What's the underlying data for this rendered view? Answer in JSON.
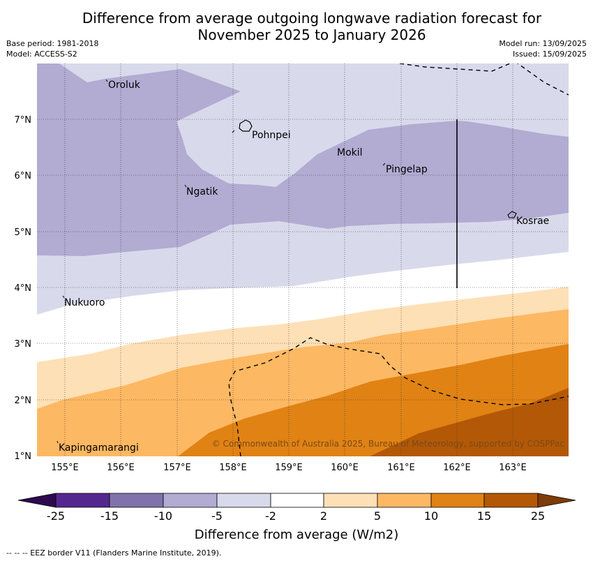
{
  "title_line1": "Difference from average outgoing longwave radiation forecast for",
  "title_line2": "November 2025 to January 2026",
  "base_period": "Base period: 1981-2018",
  "model": "Model: ACCESS-S2",
  "model_run": "Model run: 13/09/2025",
  "issued": "Issued: 15/09/2025",
  "places": {
    "oroluk": "Oroluk",
    "pohnpei": "Pohnpei",
    "mokil": "Mokil",
    "pingelap": "Pingelap",
    "ngatik": "Ngatik",
    "kosrae": "Kosrae",
    "nukuoro": "Nukuoro",
    "kapingamarangi": "Kapingamarangi"
  },
  "lat_ticks": [
    "7°N",
    "6°N",
    "5°N",
    "4°N",
    "3°N",
    "2°N",
    "1°N"
  ],
  "lon_ticks": [
    "155°E",
    "156°E",
    "157°E",
    "158°E",
    "159°E",
    "160°E",
    "161°E",
    "162°E",
    "163°E"
  ],
  "copyright": "© Commonwealth of Australia 2025, Bureau of Meteorology, supported by COSPPac",
  "colorbar": {
    "ticks": [
      "-25",
      "-15",
      "-10",
      "-5",
      "-2",
      "2",
      "5",
      "10",
      "15",
      "25"
    ],
    "label": "Difference from average (W/m2)",
    "colors": {
      "below_-25": "#2d0a4e",
      "-25_-15": "#54278f",
      "-15_-10": "#8073ac",
      "-10_-5": "#b2abd2",
      "-5_-2": "#d8daeb",
      "-2_2": "#ffffff",
      "2_5": "#fee0b6",
      "5_10": "#fdb863",
      "10_15": "#e08214",
      "15_25": "#b35806",
      "above_25": "#7f3b08"
    }
  },
  "footer": "--  --  -- EEZ border V11 (Flanders Marine Institute, 2019)."
}
